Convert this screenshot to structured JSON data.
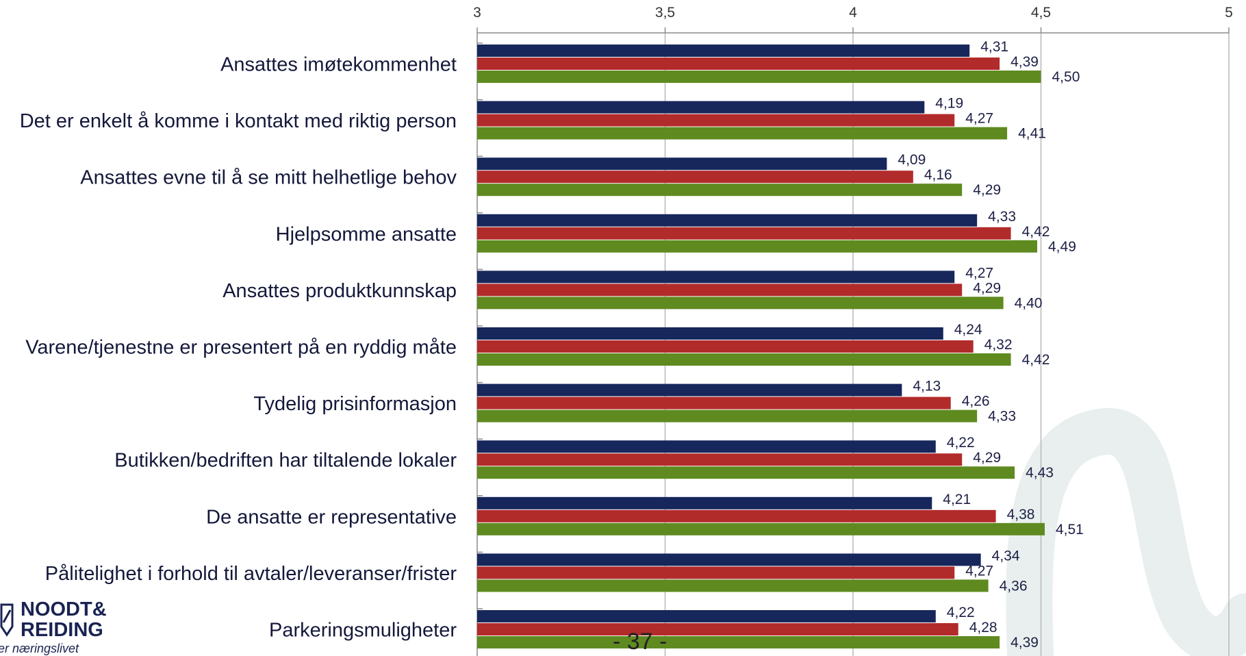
{
  "chart_data": {
    "type": "bar",
    "orientation": "horizontal",
    "categories": [
      "Ansattes imøtekommenhet",
      "Det er enkelt å komme i kontakt med riktig person",
      "Ansattes evne til å se mitt helhetlige behov",
      "Hjelpsomme ansatte",
      "Ansattes produktkunnskap",
      "Varene/tjenestne er presentert på en ryddig måte",
      "Tydelig prisinformasjon",
      "Butikken/bedriften har tiltalende lokaler",
      "De ansatte er representative ",
      "Pålitelighet i forhold til avtaler/leveranser/frister",
      "Parkeringsmuligheter"
    ],
    "series": [
      {
        "color": "#17275c",
        "values": [
          4.31,
          4.19,
          4.09,
          4.33,
          4.27,
          4.24,
          4.13,
          4.22,
          4.21,
          4.34,
          4.22
        ],
        "labels": [
          "4,31",
          "4,19",
          "4,09",
          "4,33",
          "4,27",
          "4,24",
          "4,13",
          "4,22",
          "4,21",
          "4,34",
          "4,22"
        ]
      },
      {
        "color": "#b22b2b",
        "values": [
          4.39,
          4.27,
          4.16,
          4.42,
          4.29,
          4.32,
          4.26,
          4.29,
          4.38,
          4.27,
          4.28
        ],
        "labels": [
          "4,39",
          "4,27",
          "4,16",
          "4,42",
          "4,29",
          "4,32",
          "4,26",
          "4,29",
          "4,38",
          "4,27",
          "4,28"
        ]
      },
      {
        "color": "#5f8a20",
        "values": [
          4.5,
          4.41,
          4.29,
          4.49,
          4.4,
          4.42,
          4.33,
          4.43,
          4.51,
          4.36,
          4.39
        ],
        "labels": [
          "4,50",
          "4,41",
          "4,29",
          "4,49",
          "4,40",
          "4,42",
          "4,33",
          "4,43",
          "4,51",
          "4,36",
          "4,39"
        ]
      }
    ],
    "xlim": [
      3,
      5
    ],
    "xticks": [
      3,
      3.5,
      4,
      4.5,
      5
    ],
    "xtick_labels": [
      "3",
      "3,5",
      "4",
      "4,5",
      "5"
    ],
    "axis_position": "top",
    "grid": true,
    "legend": "none"
  },
  "logo": {
    "line1": "NOODT&",
    "line2": "REIDING",
    "tagline": "utvikler næringslivet"
  },
  "page_number": "- 37 -"
}
